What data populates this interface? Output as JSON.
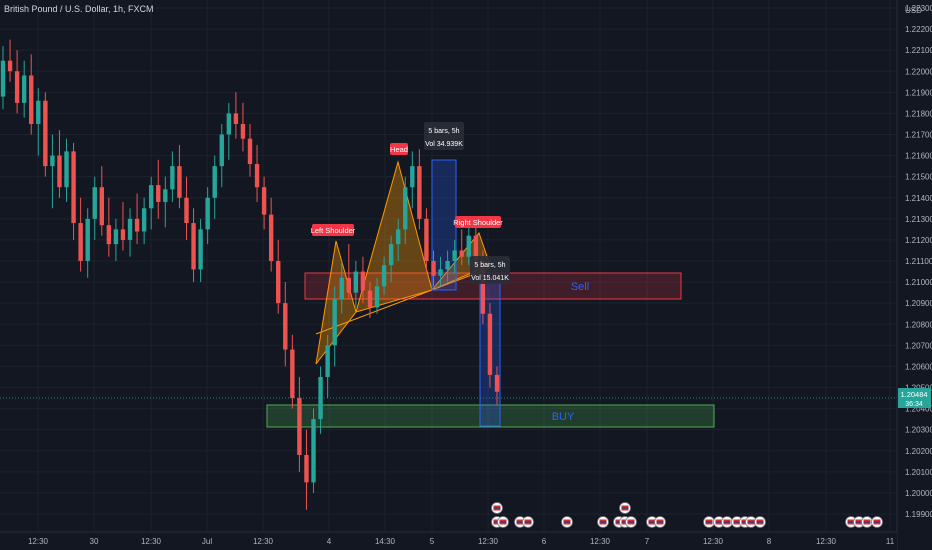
{
  "header": {
    "title": "British Pound / U.S. Dollar, 1h, FXCM"
  },
  "chart_data": {
    "type": "candlestick",
    "currency": "USD",
    "ylim": [
      1.1985,
      1.2275
    ],
    "y_ticks": [
      "1.22300",
      "1.22200",
      "1.22100",
      "1.22000",
      "1.21900",
      "1.21800",
      "1.21700",
      "1.21600",
      "1.21500",
      "1.21400",
      "1.21300",
      "1.21200",
      "1.21100",
      "1.21000",
      "1.20900",
      "1.20800",
      "1.20700",
      "1.20600",
      "1.20500",
      "1.20400",
      "1.20300",
      "1.20200",
      "1.20100",
      "1.20000",
      "1.19900"
    ],
    "x_ticks": [
      "12:30",
      "30",
      "12:30",
      "Jul",
      "12:30",
      "4",
      "14:30",
      "5",
      "12:30",
      "6",
      "12:30",
      "7",
      "12:30",
      "8",
      "12:30",
      "11"
    ],
    "current_price": "1.20484",
    "countdown": "36:34",
    "candles": [
      [
        1.2188,
        1.2212,
        1.2182,
        1.2205
      ],
      [
        1.2205,
        1.2215,
        1.2195,
        1.22
      ],
      [
        1.22,
        1.221,
        1.218,
        1.2185
      ],
      [
        1.2185,
        1.2205,
        1.2178,
        1.2198
      ],
      [
        1.2198,
        1.2208,
        1.217,
        1.2175
      ],
      [
        1.2175,
        1.2192,
        1.216,
        1.2186
      ],
      [
        1.2186,
        1.219,
        1.215,
        1.2155
      ],
      [
        1.2155,
        1.217,
        1.2135,
        1.216
      ],
      [
        1.216,
        1.2172,
        1.214,
        1.2145
      ],
      [
        1.2145,
        1.2168,
        1.2138,
        1.2162
      ],
      [
        1.2162,
        1.2166,
        1.212,
        1.2128
      ],
      [
        1.2128,
        1.214,
        1.2105,
        1.211
      ],
      [
        1.211,
        1.2135,
        1.2102,
        1.213
      ],
      [
        1.213,
        1.215,
        1.212,
        1.2145
      ],
      [
        1.2145,
        1.2155,
        1.2122,
        1.2127
      ],
      [
        1.2127,
        1.214,
        1.2112,
        1.2118
      ],
      [
        1.2118,
        1.213,
        1.211,
        1.2125
      ],
      [
        1.2125,
        1.2138,
        1.2115,
        1.212
      ],
      [
        1.212,
        1.2135,
        1.2112,
        1.213
      ],
      [
        1.213,
        1.2142,
        1.2118,
        1.2124
      ],
      [
        1.2124,
        1.214,
        1.2118,
        1.2135
      ],
      [
        1.2135,
        1.215,
        1.2125,
        1.2146
      ],
      [
        1.2146,
        1.2158,
        1.213,
        1.2138
      ],
      [
        1.2138,
        1.215,
        1.2126,
        1.2144
      ],
      [
        1.2144,
        1.2162,
        1.2138,
        1.2155
      ],
      [
        1.2155,
        1.2165,
        1.2135,
        1.214
      ],
      [
        1.214,
        1.215,
        1.212,
        1.2128
      ],
      [
        1.2128,
        1.2135,
        1.21,
        1.2106
      ],
      [
        1.2106,
        1.213,
        1.21,
        1.2125
      ],
      [
        1.2125,
        1.2145,
        1.2118,
        1.214
      ],
      [
        1.214,
        1.216,
        1.213,
        1.2155
      ],
      [
        1.2155,
        1.2175,
        1.2145,
        1.217
      ],
      [
        1.217,
        1.2185,
        1.2158,
        1.218
      ],
      [
        1.218,
        1.219,
        1.2168,
        1.2175
      ],
      [
        1.2175,
        1.2185,
        1.2162,
        1.2168
      ],
      [
        1.2168,
        1.2175,
        1.215,
        1.2156
      ],
      [
        1.2156,
        1.2165,
        1.2138,
        1.2145
      ],
      [
        1.2145,
        1.215,
        1.2125,
        1.2132
      ],
      [
        1.2132,
        1.214,
        1.2105,
        1.211
      ],
      [
        1.211,
        1.212,
        1.2085,
        1.209
      ],
      [
        1.209,
        1.21,
        1.206,
        1.2068
      ],
      [
        1.2068,
        1.2075,
        1.204,
        1.2045
      ],
      [
        1.2045,
        1.2055,
        1.201,
        1.2018
      ],
      [
        1.2018,
        1.203,
        1.1992,
        1.2005
      ],
      [
        1.2005,
        1.204,
        1.2,
        1.2035
      ],
      [
        1.2035,
        1.206,
        1.2028,
        1.2055
      ],
      [
        1.2055,
        1.2075,
        1.2045,
        1.207
      ],
      [
        1.207,
        1.2098,
        1.206,
        1.2092
      ],
      [
        1.2092,
        1.211,
        1.2085,
        1.2102
      ],
      [
        1.2102,
        1.2118,
        1.2092,
        1.2095
      ],
      [
        1.2095,
        1.211,
        1.2088,
        1.2105
      ],
      [
        1.2105,
        1.2112,
        1.209,
        1.2096
      ],
      [
        1.2096,
        1.21,
        1.2083,
        1.2088
      ],
      [
        1.2088,
        1.2102,
        1.2085,
        1.2098
      ],
      [
        1.2098,
        1.2112,
        1.2094,
        1.2108
      ],
      [
        1.2108,
        1.2122,
        1.21,
        1.2118
      ],
      [
        1.2118,
        1.213,
        1.211,
        1.2125
      ],
      [
        1.2125,
        1.215,
        1.2118,
        1.2145
      ],
      [
        1.2145,
        1.2162,
        1.2135,
        1.2155
      ],
      [
        1.2155,
        1.2163,
        1.2125,
        1.213
      ],
      [
        1.213,
        1.2135,
        1.2105,
        1.211
      ],
      [
        1.211,
        1.2115,
        1.2098,
        1.2103
      ],
      [
        1.2103,
        1.2112,
        1.2098,
        1.2106
      ],
      [
        1.2106,
        1.2115,
        1.21,
        1.211
      ],
      [
        1.211,
        1.212,
        1.2104,
        1.2115
      ],
      [
        1.2115,
        1.2125,
        1.2108,
        1.2112
      ],
      [
        1.2112,
        1.2128,
        1.2108,
        1.2122
      ],
      [
        1.2122,
        1.2128,
        1.2106,
        1.211
      ],
      [
        1.211,
        1.2115,
        1.208,
        1.2085
      ],
      [
        1.2085,
        1.209,
        1.205,
        1.2056
      ],
      [
        1.2056,
        1.206,
        1.2042,
        1.2048
      ]
    ],
    "annotations": {
      "left_shoulder": "Left Shoulder",
      "head": "Head",
      "right_shoulder": "Right Shoulder",
      "sell_zone": "Sell",
      "buy_zone": "BUY",
      "measure_1_bars": "5 bars, 5h",
      "measure_1_vol": "Vol 34.939K",
      "measure_2_bars": "5 bars, 5h",
      "measure_2_vol": "Vol 15.041K"
    },
    "colors": {
      "up": "#26a69a",
      "down": "#ef5350",
      "background": "#131722",
      "sell_zone": "#f23645",
      "buy_zone": "#4caf50",
      "pattern": "#ff9800",
      "label": "#f23645",
      "measure": "#2962ff",
      "zone_text": "#2962ff",
      "price_badge": "#26a69a"
    }
  }
}
